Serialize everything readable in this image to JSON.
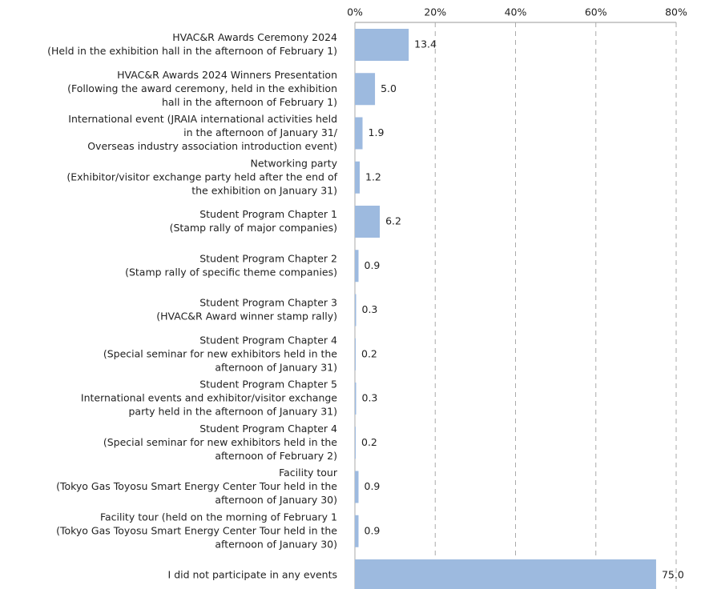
{
  "chart_data": {
    "type": "bar",
    "orientation": "horizontal",
    "categories": [
      [
        "HVAC&R Awards Ceremony 2024",
        "(Held in the exhibition hall in the afternoon of February 1)"
      ],
      [
        "HVAC&R Awards 2024 Winners Presentation",
        "(Following the award ceremony, held in the exhibition",
        "hall in the afternoon of February 1)"
      ],
      [
        "International event (JRAIA international activities held",
        "in the afternoon of January 31/",
        "Overseas industry association introduction event)"
      ],
      [
        "Networking party",
        "(Exhibitor/visitor exchange party held after the end of",
        "the exhibition on January 31)"
      ],
      [
        "Student Program Chapter 1",
        "(Stamp rally of major companies)"
      ],
      [
        "Student Program Chapter 2",
        "(Stamp rally of specific theme companies)"
      ],
      [
        "Student Program Chapter 3",
        "(HVAC&R Award winner stamp rally)"
      ],
      [
        "Student Program Chapter 4",
        "(Special seminar for new exhibitors held in the",
        "afternoon of January 31)"
      ],
      [
        "Student Program Chapter 5",
        "International events and exhibitor/visitor exchange",
        "party held in the afternoon of January 31)"
      ],
      [
        "Student Program Chapter 4",
        "(Special seminar for new exhibitors held in the",
        "afternoon of February 2)"
      ],
      [
        "Facility tour",
        "(Tokyo Gas Toyosu Smart Energy Center Tour held in the",
        "afternoon of January 30)"
      ],
      [
        "Facility tour (held on the morning of February 1",
        "(Tokyo Gas Toyosu Smart Energy Center Tour held in the",
        "afternoon of January 30)"
      ],
      [
        "I did not participate in any events"
      ]
    ],
    "values": [
      13.4,
      5.0,
      1.9,
      1.2,
      6.2,
      0.9,
      0.3,
      0.2,
      0.3,
      0.2,
      0.9,
      0.9,
      75.0
    ],
    "value_labels": [
      "13.4",
      "5.0",
      "1.9",
      "1.2",
      "6.2",
      "0.9",
      "0.3",
      "0.2",
      "0.3",
      "0.2",
      "0.9",
      "0.9",
      "75.0"
    ],
    "color": "#9dbadf",
    "xlim": [
      0,
      80
    ],
    "xticks": [
      {
        "value": 0,
        "label": "0%"
      },
      {
        "value": 20,
        "label": "20%"
      },
      {
        "value": 40,
        "label": "40%"
      },
      {
        "value": 60,
        "label": "60%"
      },
      {
        "value": 80,
        "label": "80%"
      }
    ],
    "grid": true
  }
}
